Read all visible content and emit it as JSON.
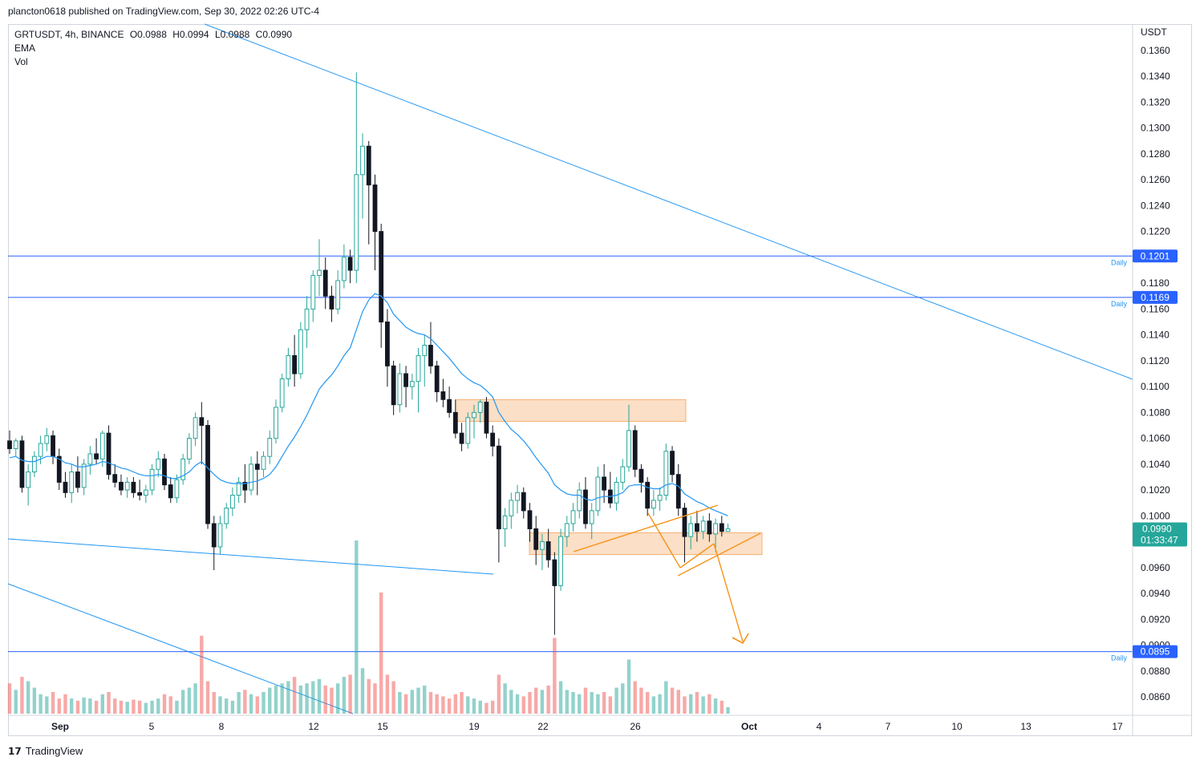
{
  "header": {
    "published": "plancton0618 published on TradingView.com, Sep 30, 2022 02:26 UTC-4"
  },
  "legend": {
    "symbol": "GRTUSDT, 4h, BINANCE",
    "open": "O0.0988",
    "high": "H0.0994",
    "low": "L0.0988",
    "close": "C0.0990",
    "indicator1": "EMA",
    "indicator2": "Vol"
  },
  "footer": {
    "brand": "TradingView"
  },
  "colors": {
    "up": "#26a69a",
    "down": "#ef5350",
    "ema": "#2196f3",
    "zone": "#f8c9a0",
    "zone_border": "#f5a35c",
    "pattern": "#f7931a",
    "level": "#2962ff"
  },
  "chart_data": {
    "type": "candlestick",
    "price_axis": {
      "unit": "USDT",
      "ticks": [
        "0.1360",
        "0.1340",
        "0.1320",
        "0.1300",
        "0.1280",
        "0.1260",
        "0.1240",
        "0.1220",
        "0.1180",
        "0.1160",
        "0.1140",
        "0.1120",
        "0.1100",
        "0.1080",
        "0.1060",
        "0.1040",
        "0.1020",
        "0.1000",
        "0.0960",
        "0.0940",
        "0.0920",
        "0.0900",
        "0.0880",
        "0.0860"
      ],
      "range": [
        0.0845,
        0.1375
      ]
    },
    "time_axis": {
      "ticks": [
        "Sep",
        "5",
        "8",
        "12",
        "15",
        "19",
        "22",
        "26",
        "Oct",
        "4",
        "7",
        "10",
        "13",
        "17"
      ]
    },
    "horizontal_levels": [
      {
        "price": 0.1201,
        "label": "0.1201",
        "tag": "Daily"
      },
      {
        "price": 0.1169,
        "label": "0.1169",
        "tag": "Daily"
      },
      {
        "price": 0.0895,
        "label": "0.0895",
        "tag": "Daily"
      }
    ],
    "current_price": {
      "label": "0.0990",
      "countdown": "01:33:47"
    },
    "zones": [
      {
        "from": "Sep 18",
        "to": "Sep 27",
        "low": 0.1073,
        "high": 0.109
      },
      {
        "from": "Sep 21",
        "to": "Oct 1",
        "low": 0.097,
        "high": 0.0987
      }
    ],
    "candles": [
      [
        0.1058,
        0.1066,
        0.1048,
        0.1052
      ],
      [
        0.1052,
        0.106,
        0.1046,
        0.1058
      ],
      [
        0.1058,
        0.1062,
        0.1018,
        0.1022
      ],
      [
        0.1022,
        0.104,
        0.1008,
        0.1034
      ],
      [
        0.1034,
        0.105,
        0.103,
        0.1046
      ],
      [
        0.1046,
        0.1062,
        0.104,
        0.1056
      ],
      [
        0.1056,
        0.1068,
        0.105,
        0.1062
      ],
      [
        0.1062,
        0.1066,
        0.104,
        0.1046
      ],
      [
        0.1046,
        0.1052,
        0.102,
        0.1026
      ],
      [
        0.1026,
        0.1034,
        0.1014,
        0.1018
      ],
      [
        0.1018,
        0.104,
        0.101,
        0.1034
      ],
      [
        0.1034,
        0.1046,
        0.1018,
        0.1022
      ],
      [
        0.1022,
        0.1044,
        0.1016,
        0.104
      ],
      [
        0.104,
        0.1054,
        0.1032,
        0.1048
      ],
      [
        0.1048,
        0.106,
        0.104,
        0.1044
      ],
      [
        0.1044,
        0.1066,
        0.1038,
        0.1064
      ],
      [
        0.1064,
        0.107,
        0.1028,
        0.1032
      ],
      [
        0.1032,
        0.104,
        0.1022,
        0.1026
      ],
      [
        0.1026,
        0.1032,
        0.1016,
        0.102
      ],
      [
        0.102,
        0.103,
        0.1014,
        0.1026
      ],
      [
        0.1026,
        0.103,
        0.1014,
        0.1018
      ],
      [
        0.1018,
        0.1028,
        0.1012,
        0.1016
      ],
      [
        0.1016,
        0.1024,
        0.101,
        0.102
      ],
      [
        0.102,
        0.104,
        0.1016,
        0.1036
      ],
      [
        0.1036,
        0.105,
        0.103,
        0.1044
      ],
      [
        0.1044,
        0.1048,
        0.102,
        0.1024
      ],
      [
        0.1024,
        0.103,
        0.101,
        0.1014
      ],
      [
        0.1014,
        0.1032,
        0.101,
        0.1028
      ],
      [
        0.1028,
        0.1048,
        0.1024,
        0.1044
      ],
      [
        0.1044,
        0.1064,
        0.104,
        0.106
      ],
      [
        0.106,
        0.108,
        0.1054,
        0.1076
      ],
      [
        0.1076,
        0.1088,
        0.104,
        0.107
      ],
      [
        0.107,
        0.1074,
        0.099,
        0.0994
      ],
      [
        0.0994,
        0.1,
        0.0958,
        0.0976
      ],
      [
        0.0976,
        0.1,
        0.097,
        0.0994
      ],
      [
        0.0994,
        0.101,
        0.099,
        0.1006
      ],
      [
        0.1006,
        0.1022,
        0.1,
        0.1016
      ],
      [
        0.1016,
        0.103,
        0.101,
        0.1026
      ],
      [
        0.1026,
        0.104,
        0.101,
        0.102
      ],
      [
        0.102,
        0.1046,
        0.1016,
        0.104
      ],
      [
        0.104,
        0.105,
        0.1016,
        0.1036
      ],
      [
        0.1036,
        0.105,
        0.103,
        0.1046
      ],
      [
        0.1046,
        0.1066,
        0.104,
        0.106
      ],
      [
        0.106,
        0.109,
        0.1056,
        0.1084
      ],
      [
        0.1084,
        0.111,
        0.108,
        0.1106
      ],
      [
        0.1106,
        0.113,
        0.11,
        0.1124
      ],
      [
        0.1124,
        0.114,
        0.11,
        0.111
      ],
      [
        0.111,
        0.115,
        0.1106,
        0.1144
      ],
      [
        0.1144,
        0.117,
        0.113,
        0.116
      ],
      [
        0.116,
        0.119,
        0.115,
        0.1186
      ],
      [
        0.1186,
        0.1214,
        0.117,
        0.119
      ],
      [
        0.119,
        0.12,
        0.116,
        0.117
      ],
      [
        0.117,
        0.1178,
        0.115,
        0.116
      ],
      [
        0.116,
        0.119,
        0.1156,
        0.1182
      ],
      [
        0.1182,
        0.121,
        0.1176,
        0.12
      ],
      [
        0.12,
        0.1206,
        0.118,
        0.119
      ],
      [
        0.119,
        0.1343,
        0.118,
        0.1264
      ],
      [
        0.1264,
        0.1296,
        0.123,
        0.1286
      ],
      [
        0.1286,
        0.129,
        0.121,
        0.1256
      ],
      [
        0.1256,
        0.1264,
        0.119,
        0.122
      ],
      [
        0.122,
        0.1226,
        0.113,
        0.115
      ],
      [
        0.115,
        0.116,
        0.11,
        0.1116
      ],
      [
        0.1116,
        0.112,
        0.1078,
        0.1086
      ],
      [
        0.1086,
        0.1118,
        0.108,
        0.111
      ],
      [
        0.111,
        0.1116,
        0.1084,
        0.11
      ],
      [
        0.11,
        0.111,
        0.109,
        0.1104
      ],
      [
        0.1104,
        0.113,
        0.108,
        0.1124
      ],
      [
        0.1124,
        0.114,
        0.11,
        0.1132
      ],
      [
        0.1132,
        0.115,
        0.111,
        0.1116
      ],
      [
        0.1116,
        0.112,
        0.1088,
        0.1096
      ],
      [
        0.1096,
        0.1106,
        0.1084,
        0.109
      ],
      [
        0.109,
        0.11,
        0.1076,
        0.108
      ],
      [
        0.108,
        0.109,
        0.106,
        0.1064
      ],
      [
        0.1064,
        0.1072,
        0.105,
        0.1056
      ],
      [
        0.1056,
        0.108,
        0.1052,
        0.1076
      ],
      [
        0.1076,
        0.1086,
        0.106,
        0.108
      ],
      [
        0.108,
        0.109,
        0.1072,
        0.1088
      ],
      [
        0.1088,
        0.1092,
        0.106,
        0.1064
      ],
      [
        0.1064,
        0.107,
        0.1046,
        0.1054
      ],
      [
        0.1054,
        0.106,
        0.0964,
        0.099
      ],
      [
        0.099,
        0.1006,
        0.0976,
        0.1
      ],
      [
        0.1,
        0.1018,
        0.099,
        0.1012
      ],
      [
        0.1012,
        0.1024,
        0.1002,
        0.1018
      ],
      [
        0.1018,
        0.1022,
        0.0998,
        0.1004
      ],
      [
        0.1004,
        0.101,
        0.098,
        0.099
      ],
      [
        0.099,
        0.1,
        0.0962,
        0.0974
      ],
      [
        0.0974,
        0.0986,
        0.0958,
        0.098
      ],
      [
        0.098,
        0.099,
        0.096,
        0.0966
      ],
      [
        0.0966,
        0.0972,
        0.0908,
        0.0946
      ],
      [
        0.0946,
        0.099,
        0.0942,
        0.0984
      ],
      [
        0.0984,
        0.1,
        0.0976,
        0.0994
      ],
      [
        0.0994,
        0.101,
        0.0988,
        0.1004
      ],
      [
        0.1004,
        0.1026,
        0.0998,
        0.102
      ],
      [
        0.102,
        0.103,
        0.099,
        0.0994
      ],
      [
        0.0994,
        0.101,
        0.0982,
        0.1004
      ],
      [
        0.1004,
        0.1038,
        0.1,
        0.103
      ],
      [
        0.103,
        0.104,
        0.101,
        0.102
      ],
      [
        0.102,
        0.1034,
        0.1006,
        0.101
      ],
      [
        0.101,
        0.103,
        0.1004,
        0.1026
      ],
      [
        0.1026,
        0.1044,
        0.102,
        0.1038
      ],
      [
        0.1038,
        0.1086,
        0.1034,
        0.1066
      ],
      [
        0.1066,
        0.107,
        0.103,
        0.1036
      ],
      [
        0.1036,
        0.104,
        0.1018,
        0.1026
      ],
      [
        0.1026,
        0.103,
        0.1,
        0.1006
      ],
      [
        0.1006,
        0.102,
        0.1,
        0.1012
      ],
      [
        0.1012,
        0.1022,
        0.1004,
        0.1016
      ],
      [
        0.1016,
        0.1056,
        0.1012,
        0.105
      ],
      [
        0.105,
        0.1054,
        0.1026,
        0.1032
      ],
      [
        0.1032,
        0.104,
        0.1,
        0.1006
      ],
      [
        0.1006,
        0.101,
        0.0964,
        0.0984
      ],
      [
        0.0984,
        0.1,
        0.0974,
        0.0994
      ],
      [
        0.0994,
        0.1004,
        0.098,
        0.0988
      ],
      [
        0.0988,
        0.1,
        0.0982,
        0.0996
      ],
      [
        0.0996,
        0.1002,
        0.098,
        0.0986
      ],
      [
        0.0986,
        0.0998,
        0.0972,
        0.0994
      ],
      [
        0.0994,
        0.1,
        0.0984,
        0.0988
      ],
      [
        0.0988,
        0.0994,
        0.0988,
        0.099
      ]
    ],
    "ema": [
      0.1045,
      0.1046,
      0.1043,
      0.1042,
      0.1042,
      0.1044,
      0.1046,
      0.1046,
      0.1044,
      0.1041,
      0.104,
      0.1038,
      0.1038,
      0.1039,
      0.104,
      0.1042,
      0.1041,
      0.1039,
      0.1037,
      0.1036,
      0.1034,
      0.1032,
      0.1031,
      0.1031,
      0.1032,
      0.1031,
      0.1029,
      0.1029,
      0.1031,
      0.1034,
      0.1039,
      0.1042,
      0.1037,
      0.1032,
      0.1028,
      0.1026,
      0.1025,
      0.1025,
      0.1025,
      0.1026,
      0.1027,
      0.1029,
      0.1032,
      0.1038,
      0.1046,
      0.1054,
      0.1061,
      0.1069,
      0.1078,
      0.1088,
      0.1098,
      0.1104,
      0.1109,
      0.1116,
      0.1124,
      0.113,
      0.1144,
      0.1158,
      0.1167,
      0.1172,
      0.117,
      0.1165,
      0.1156,
      0.1151,
      0.1146,
      0.1143,
      0.1141,
      0.114,
      0.1137,
      0.1132,
      0.1127,
      0.1122,
      0.1116,
      0.111,
      0.1106,
      0.1103,
      0.1101,
      0.1097,
      0.1092,
      0.108,
      0.1073,
      0.1067,
      0.1063,
      0.1058,
      0.1052,
      0.1045,
      0.1039,
      0.1033,
      0.1024,
      0.102,
      0.1017,
      0.1016,
      0.1016,
      0.1013,
      0.1012,
      0.1014,
      0.1015,
      0.1015,
      0.1016,
      0.1018,
      0.1023,
      0.1024,
      0.1024,
      0.1022,
      0.1021,
      0.1021,
      0.1024,
      0.1025,
      0.1023,
      0.1017,
      0.1014,
      0.1011,
      0.1009,
      0.1006,
      0.1004,
      0.1002,
      0.1
    ],
    "volume": [
      28,
      22,
      34,
      30,
      24,
      18,
      16,
      20,
      14,
      18,
      14,
      12,
      15,
      14,
      12,
      18,
      20,
      14,
      12,
      11,
      13,
      12,
      10,
      12,
      14,
      18,
      16,
      12,
      22,
      24,
      28,
      72,
      30,
      20,
      16,
      14,
      12,
      20,
      22,
      18,
      16,
      20,
      24,
      26,
      28,
      30,
      34,
      26,
      28,
      30,
      32,
      26,
      24,
      28,
      34,
      36,
      160,
      42,
      32,
      28,
      112,
      36,
      30,
      20,
      18,
      22,
      24,
      26,
      20,
      18,
      16,
      14,
      18,
      20,
      16,
      14,
      12,
      10,
      12,
      36,
      28,
      22,
      18,
      16,
      20,
      24,
      22,
      26,
      70,
      30,
      22,
      20,
      18,
      24,
      20,
      18,
      20,
      16,
      24,
      28,
      50,
      30,
      24,
      20,
      16,
      18,
      30,
      24,
      22,
      16,
      18,
      20,
      16,
      18,
      14,
      12,
      6
    ]
  }
}
